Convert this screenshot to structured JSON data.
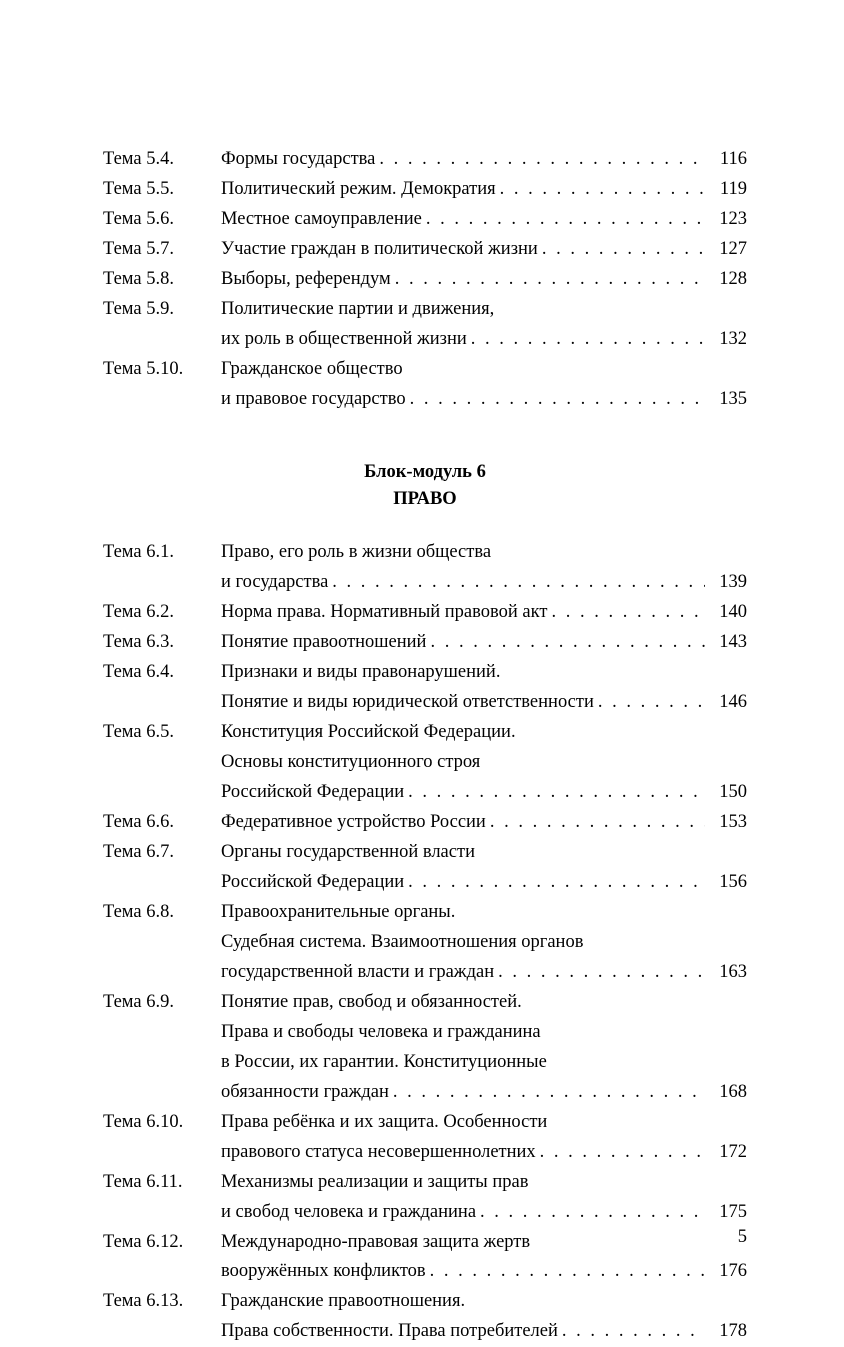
{
  "page_number": "5",
  "section_heading": {
    "line1": "Блок-модуль 6",
    "line2": "ПРАВО"
  },
  "block1": [
    {
      "label": "Тема 5.4.",
      "lines": [
        "Формы государства"
      ],
      "page": "116"
    },
    {
      "label": "Тема 5.5.",
      "lines": [
        "Политический режим. Демократия"
      ],
      "page": "119"
    },
    {
      "label": "Тема 5.6.",
      "lines": [
        "Местное самоуправление"
      ],
      "page": "123"
    },
    {
      "label": "Тема 5.7.",
      "lines": [
        "Участие граждан в политической жизни"
      ],
      "page": "127"
    },
    {
      "label": "Тема 5.8.",
      "lines": [
        "Выборы, референдум"
      ],
      "page": "128"
    },
    {
      "label": "Тема 5.9.",
      "lines": [
        "Политические партии и движения,",
        "их роль в общественной жизни"
      ],
      "page": "132"
    },
    {
      "label": "Тема 5.10.",
      "lines": [
        "Гражданское общество",
        "и правовое государство"
      ],
      "page": "135"
    }
  ],
  "block2": [
    {
      "label": "Тема 6.1.",
      "lines": [
        "Право, его роль в жизни общества",
        "и государства"
      ],
      "page": "139"
    },
    {
      "label": "Тема 6.2.",
      "lines": [
        "Норма права. Нормативный правовой акт"
      ],
      "page": "140"
    },
    {
      "label": "Тема 6.3.",
      "lines": [
        "Понятие правоотношений"
      ],
      "page": "143"
    },
    {
      "label": "Тема 6.4.",
      "lines": [
        "Признаки и виды правонарушений.",
        "Понятие и виды юридической ответственности"
      ],
      "page": "146"
    },
    {
      "label": "Тема 6.5.",
      "lines": [
        "Конституция Российской Федерации.",
        "Основы конституционного строя",
        "Российской Федерации"
      ],
      "page": "150"
    },
    {
      "label": "Тема 6.6.",
      "lines": [
        "Федеративное устройство России"
      ],
      "page": "153"
    },
    {
      "label": "Тема 6.7.",
      "lines": [
        "Органы государственной власти",
        "Российской Федерации"
      ],
      "page": "156"
    },
    {
      "label": "Тема 6.8.",
      "lines": [
        "Правоохранительные органы.",
        "Судебная система. Взаимоотношения органов",
        "государственной власти и граждан"
      ],
      "page": "163"
    },
    {
      "label": "Тема 6.9.",
      "lines": [
        "Понятие прав, свобод и обязанностей.",
        "Права и свободы человека и гражданина",
        "в России, их гарантии. Конституционные",
        "обязанности граждан"
      ],
      "page": "168"
    },
    {
      "label": "Тема 6.10.",
      "lines": [
        "Права ребёнка и их защита. Особенности",
        "правового статуса несовершеннолетних"
      ],
      "page": "172"
    },
    {
      "label": "Тема 6.11.",
      "lines": [
        "Механизмы реализации и защиты прав",
        "и свобод человека и гражданина"
      ],
      "page": "175"
    },
    {
      "label": "Тема 6.12.",
      "lines": [
        "Международно-правовая защита жертв",
        "вооружённых конфликтов"
      ],
      "page": "176"
    },
    {
      "label": "Тема 6.13.",
      "lines": [
        "Гражданские правоотношения.",
        "Права собственности. Права потребителей"
      ],
      "page": "178"
    }
  ]
}
